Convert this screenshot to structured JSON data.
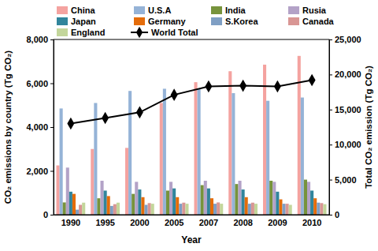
{
  "chart_data": {
    "type": "bar",
    "x_label": "Year",
    "y_label": "CO₂ emissions by country (Tg CO₂)",
    "y2_label": "Total CO₂ emission (Tg CO₂)",
    "categories": [
      "1990",
      "1995",
      "2000",
      "2005",
      "2007",
      "2008",
      "2009",
      "2010"
    ],
    "series": [
      {
        "name": "China",
        "color": "#f4a3a0",
        "values": [
          2250,
          3000,
          3050,
          5100,
          6050,
          6550,
          6850,
          7250
        ]
      },
      {
        "name": "U.S.A",
        "color": "#95b3d7",
        "values": [
          4850,
          5100,
          5650,
          5750,
          5750,
          5550,
          5200,
          5350
        ]
      },
      {
        "name": "India",
        "color": "#77933c",
        "values": [
          560,
          750,
          950,
          1100,
          1350,
          1400,
          1550,
          1600
        ]
      },
      {
        "name": "Rusia",
        "color": "#b3a2c7",
        "values": [
          2150,
          1550,
          1500,
          1500,
          1550,
          1550,
          1500,
          1500
        ]
      },
      {
        "name": "Japan",
        "color": "#31859c",
        "values": [
          1050,
          1100,
          1150,
          1200,
          1200,
          1150,
          1050,
          1100
        ]
      },
      {
        "name": "Germany",
        "color": "#e46c0a",
        "values": [
          950,
          850,
          800,
          800,
          750,
          800,
          700,
          750
        ]
      },
      {
        "name": "S.Korea",
        "color": "#7f9fc4",
        "values": [
          230,
          400,
          450,
          500,
          500,
          500,
          500,
          550
        ]
      },
      {
        "name": "Canada",
        "color": "#d99694",
        "values": [
          450,
          480,
          530,
          550,
          560,
          550,
          500,
          530
        ]
      },
      {
        "name": "England",
        "color": "#c3d69b",
        "values": [
          550,
          550,
          500,
          500,
          500,
          500,
          450,
          480
        ]
      },
      {
        "name": "World Total",
        "color": "#000000",
        "type": "line",
        "axis": "y2",
        "marker": "diamond",
        "line_style": "solid",
        "values": [
          13000,
          13800,
          14600,
          17100,
          18300,
          18400,
          18300,
          19200
        ]
      }
    ],
    "ylim": [
      0,
      8000
    ],
    "yticks": [
      0,
      {
        "value": 2000,
        "label": "2,000"
      },
      {
        "value": 4000,
        "label": "4,000"
      },
      {
        "value": 6000,
        "label": "6,000"
      },
      {
        "value": 8000,
        "label": "8,000"
      }
    ],
    "y2lim": [
      0,
      25000
    ],
    "y2ticks": [
      0,
      {
        "value": 5000,
        "label": "5,000"
      },
      {
        "value": 10000,
        "label": "10,000"
      },
      {
        "value": 15000,
        "label": "15,000"
      },
      {
        "value": 20000,
        "label": "20,000"
      },
      {
        "value": 25000,
        "label": "25,000"
      }
    ],
    "grid": false,
    "legend": "top"
  }
}
